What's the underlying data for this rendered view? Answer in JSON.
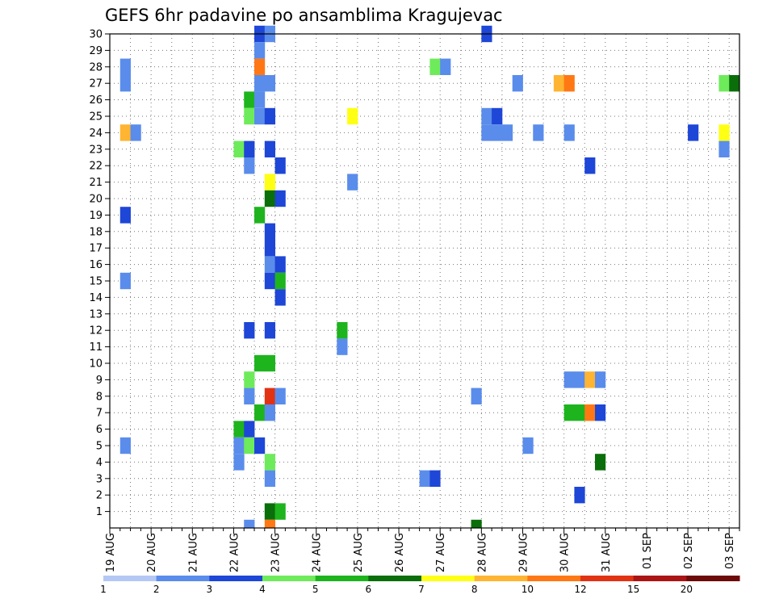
{
  "chart_data": {
    "type": "heatmap",
    "title": "GEFS 6hr padavine po ansamblima Kragujevac",
    "xlabel": "",
    "ylabel": "",
    "x_unit": "6h steps from 19 AUG 00Z",
    "x_range": [
      0,
      61
    ],
    "y_range": [
      0,
      30
    ],
    "x_tick_labels": [
      "19 AUG",
      "20 AUG",
      "21 AUG",
      "22 AUG",
      "23 AUG",
      "24 AUG",
      "25 AUG",
      "26 AUG",
      "27 AUG",
      "28 AUG",
      "29 AUG",
      "30 AUG",
      "31 AUG",
      "01 SEP",
      "02 SEP",
      "03 SEP"
    ],
    "y_tick_labels": [
      "1",
      "2",
      "3",
      "4",
      "5",
      "6",
      "7",
      "8",
      "9",
      "10",
      "11",
      "12",
      "13",
      "14",
      "15",
      "16",
      "17",
      "18",
      "19",
      "20",
      "21",
      "22",
      "23",
      "24",
      "25",
      "26",
      "27",
      "28",
      "29",
      "30"
    ],
    "grid": true,
    "colorbar": {
      "levels": [
        1,
        2,
        3,
        4,
        5,
        6,
        7,
        8,
        10,
        12,
        15,
        20
      ],
      "colors": [
        "#b4c8f5",
        "#5a8ceb",
        "#1e46d7",
        "#6eeb5a",
        "#1eb41e",
        "#0a6e0a",
        "#ffff14",
        "#ffb432",
        "#ff7814",
        "#e13214",
        "#aa1414",
        "#6e0a0a"
      ]
    },
    "cells": [
      [
        14,
        30,
        2
      ],
      [
        15,
        30,
        1
      ],
      [
        36,
        30,
        2
      ],
      [
        14,
        29,
        1
      ],
      [
        1,
        28,
        1
      ],
      [
        14,
        28,
        8
      ],
      [
        31,
        28,
        3
      ],
      [
        32,
        28,
        1
      ],
      [
        1,
        27,
        1
      ],
      [
        14,
        27,
        1
      ],
      [
        15,
        27,
        1
      ],
      [
        39,
        27,
        1
      ],
      [
        43,
        27,
        7
      ],
      [
        44,
        27,
        8
      ],
      [
        59,
        27,
        3
      ],
      [
        60,
        27,
        5
      ],
      [
        13,
        26,
        4
      ],
      [
        14,
        26,
        1
      ],
      [
        13,
        25,
        3
      ],
      [
        14,
        25,
        1
      ],
      [
        15,
        25,
        2
      ],
      [
        23,
        25,
        6
      ],
      [
        36,
        25,
        1
      ],
      [
        37,
        25,
        2
      ],
      [
        1,
        24,
        7
      ],
      [
        2,
        24,
        1
      ],
      [
        36,
        24,
        1
      ],
      [
        37,
        24,
        1
      ],
      [
        38,
        24,
        1
      ],
      [
        41,
        24,
        1
      ],
      [
        44,
        24,
        1
      ],
      [
        56,
        24,
        2
      ],
      [
        59,
        24,
        6
      ],
      [
        12,
        23,
        3
      ],
      [
        13,
        23,
        2
      ],
      [
        15,
        23,
        2
      ],
      [
        59,
        23,
        1
      ],
      [
        13,
        22,
        1
      ],
      [
        16,
        22,
        2
      ],
      [
        46,
        22,
        2
      ],
      [
        15,
        21,
        6
      ],
      [
        23,
        21,
        1
      ],
      [
        15,
        20,
        5
      ],
      [
        16,
        20,
        2
      ],
      [
        1,
        19,
        2
      ],
      [
        14,
        19,
        4
      ],
      [
        15,
        18,
        2
      ],
      [
        15,
        17,
        2
      ],
      [
        15,
        16,
        1
      ],
      [
        16,
        16,
        2
      ],
      [
        1,
        15,
        1
      ],
      [
        15,
        15,
        2
      ],
      [
        16,
        15,
        4
      ],
      [
        16,
        14,
        2
      ],
      [
        13,
        12,
        2
      ],
      [
        15,
        12,
        2
      ],
      [
        22,
        12,
        4
      ],
      [
        22,
        11,
        1
      ],
      [
        14,
        10,
        4
      ],
      [
        15,
        10,
        4
      ],
      [
        13,
        9,
        3
      ],
      [
        44,
        9,
        1
      ],
      [
        45,
        9,
        1
      ],
      [
        46,
        9,
        7
      ],
      [
        47,
        9,
        1
      ],
      [
        13,
        8,
        1
      ],
      [
        15,
        8,
        9
      ],
      [
        16,
        8,
        1
      ],
      [
        35,
        8,
        1
      ],
      [
        14,
        7,
        4
      ],
      [
        15,
        7,
        1
      ],
      [
        44,
        7,
        4
      ],
      [
        45,
        7,
        4
      ],
      [
        46,
        7,
        8
      ],
      [
        47,
        7,
        2
      ],
      [
        12,
        6,
        4
      ],
      [
        13,
        6,
        2
      ],
      [
        1,
        5,
        1
      ],
      [
        12,
        5,
        1
      ],
      [
        13,
        5,
        3
      ],
      [
        14,
        5,
        2
      ],
      [
        40,
        5,
        1
      ],
      [
        12,
        4,
        1
      ],
      [
        15,
        4,
        3
      ],
      [
        47,
        4,
        5
      ],
      [
        15,
        3,
        1
      ],
      [
        30,
        3,
        1
      ],
      [
        31,
        3,
        2
      ],
      [
        45,
        2,
        2
      ],
      [
        15,
        1,
        5
      ],
      [
        16,
        1,
        4
      ],
      [
        13,
        0,
        1
      ],
      [
        15,
        0,
        8
      ],
      [
        35,
        0,
        5
      ]
    ]
  }
}
